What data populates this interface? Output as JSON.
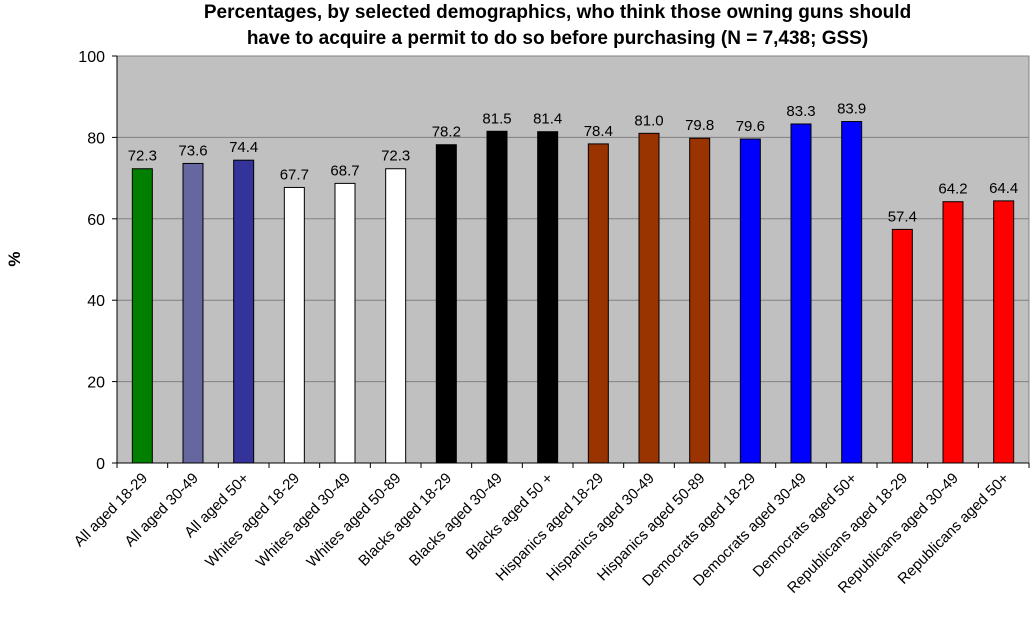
{
  "chart_data": {
    "type": "bar",
    "title_lines": [
      "Percentages, by selected demographics, who think those owning guns should",
      "have to acquire a permit to do so before purchasing (N = 7,438; GSS)"
    ],
    "xlabel": "",
    "ylabel": "%",
    "ylim": [
      0,
      100
    ],
    "yticks": [
      0,
      20,
      40,
      60,
      80,
      100
    ],
    "grid": true,
    "legend": "none",
    "plot_background": "#c0c0c0",
    "categories": [
      "All aged 18-29",
      "All aged 30-49",
      "All aged 50+",
      "Whites aged 18-29",
      "Whites aged 30-49",
      "Whites aged 50-89",
      "Blacks aged 18-29",
      "Blacks aged 30-49",
      "Blacks aged 50 +",
      "Hispanics aged 18-29",
      "Hispanics aged 30-49",
      "Hispanics aged 50-89",
      "Democrats aged 18-29",
      "Democrats aged 30-49",
      "Democrats aged 50+",
      "Republicans aged 18-29",
      "Republicans aged 30-49",
      "Republicans aged 50+"
    ],
    "values": [
      72.3,
      73.6,
      74.4,
      67.7,
      68.7,
      72.3,
      78.2,
      81.5,
      81.4,
      78.4,
      81.0,
      79.8,
      79.6,
      83.3,
      83.9,
      57.4,
      64.2,
      64.4
    ],
    "value_labels": [
      "72.3",
      "73.6",
      "74.4",
      "67.7",
      "68.7",
      "72.3",
      "78.2",
      "81.5",
      "81.4",
      "78.4",
      "81.0",
      "79.8",
      "79.6",
      "83.3",
      "83.9",
      "57.4",
      "64.2",
      "64.4"
    ],
    "colors": [
      "#007f00",
      "#6666a0",
      "#333399",
      "#ffffff",
      "#ffffff",
      "#ffffff",
      "#000000",
      "#000000",
      "#000000",
      "#993300",
      "#993300",
      "#993300",
      "#0000ff",
      "#0000ff",
      "#0000ff",
      "#ff0000",
      "#ff0000",
      "#ff0000"
    ]
  }
}
